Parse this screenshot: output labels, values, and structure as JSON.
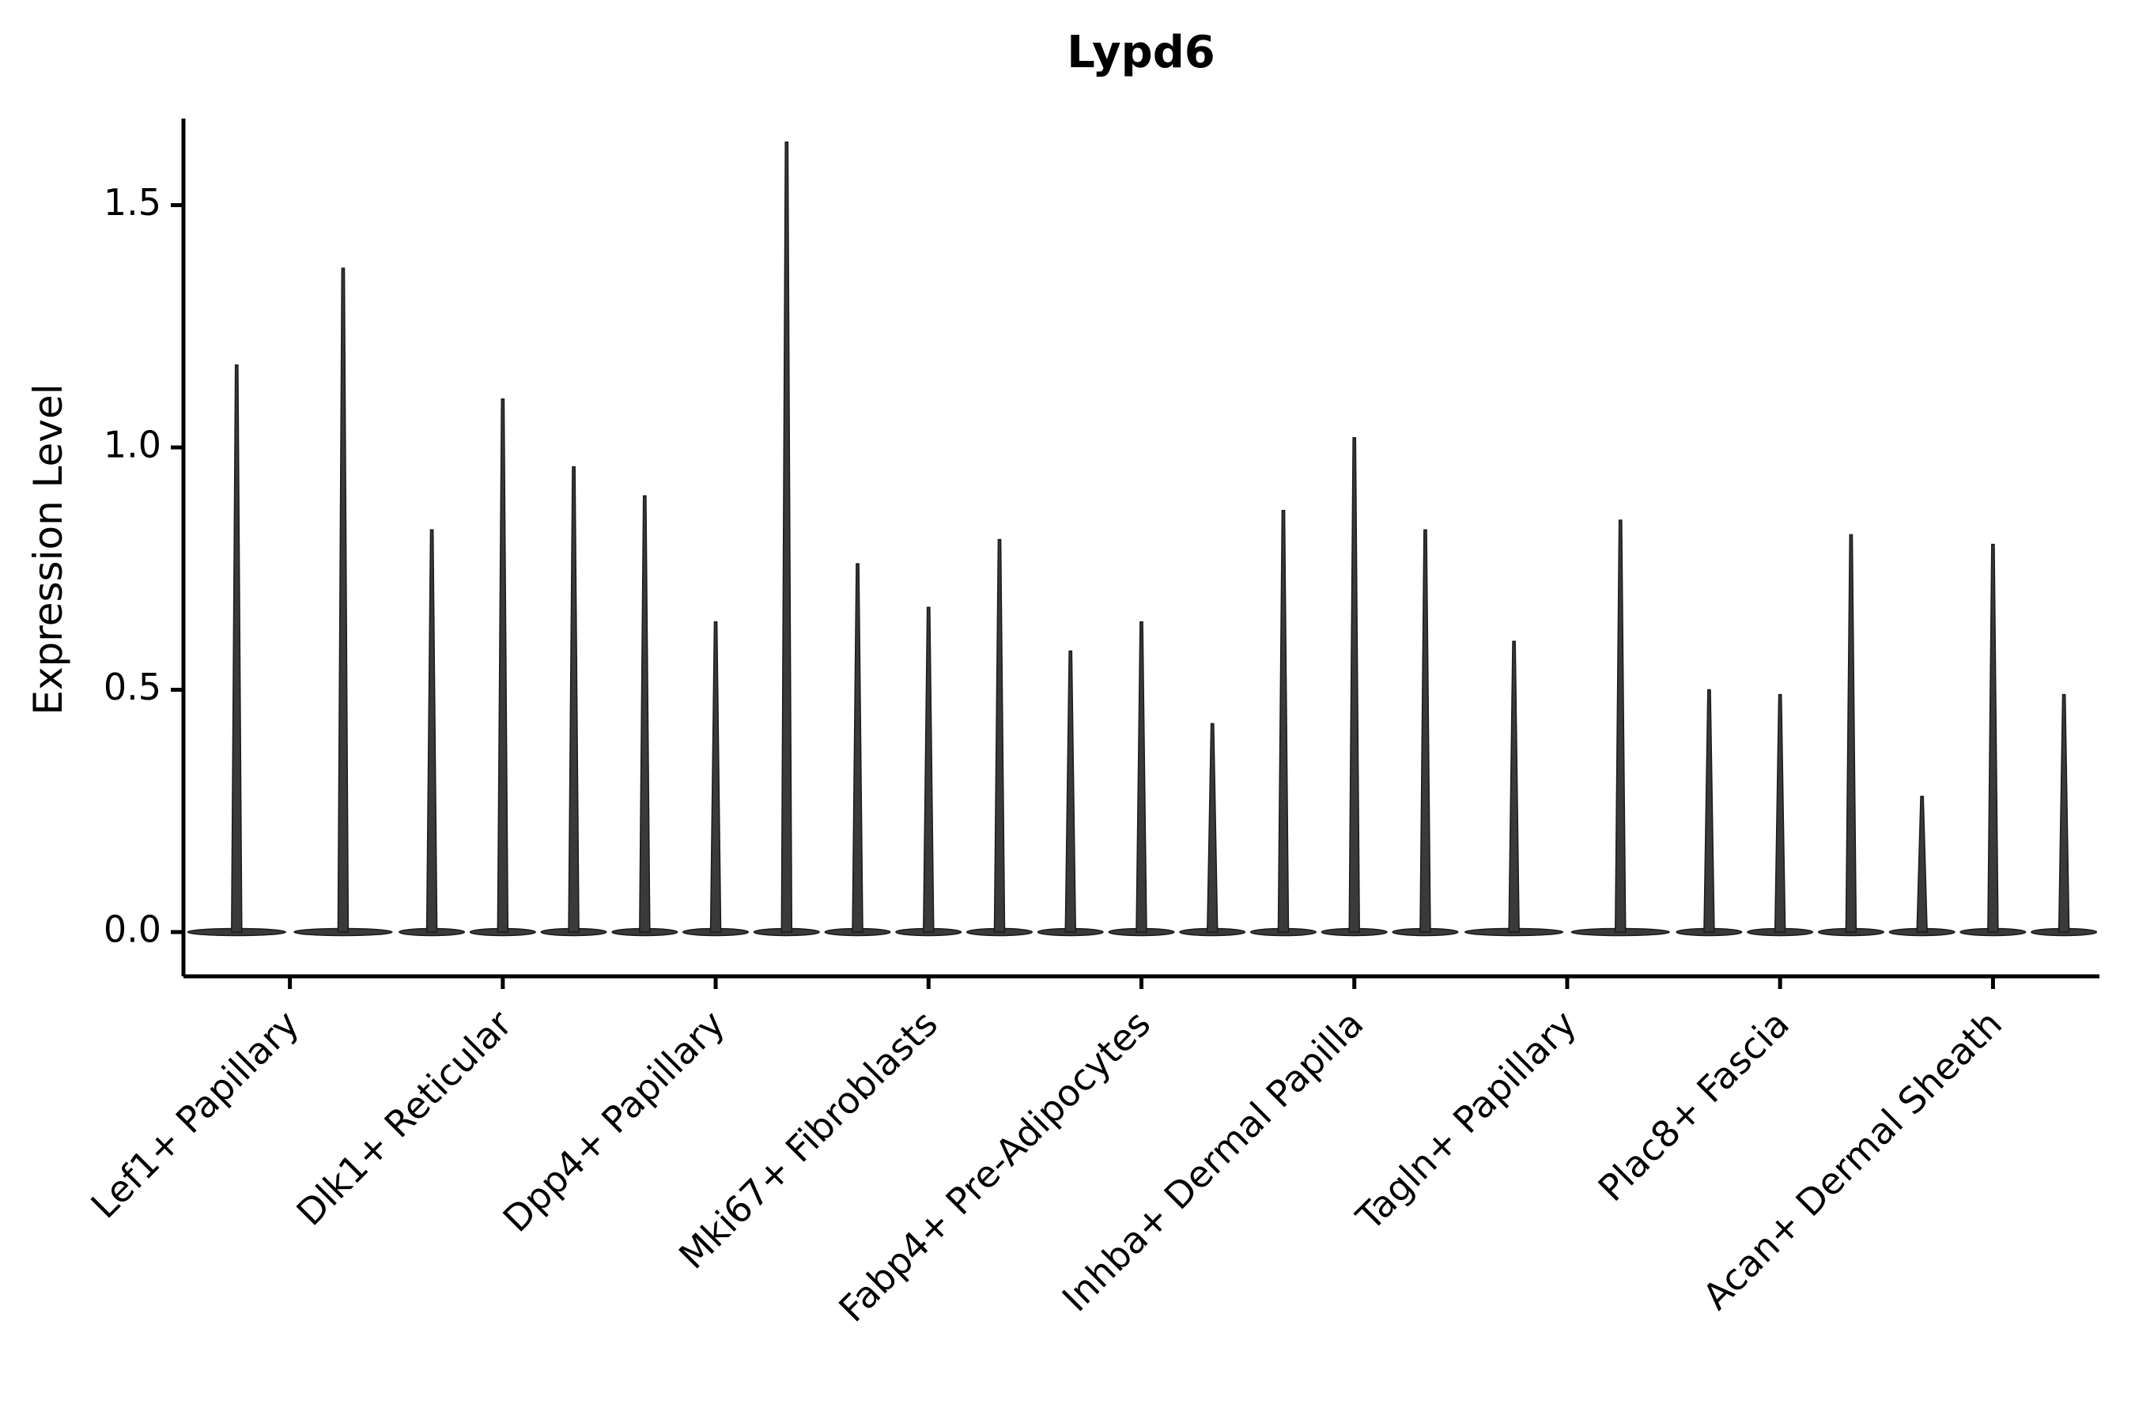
{
  "figure": {
    "title": "Lypd6",
    "ylabel": "Expression Level"
  },
  "chart_data": {
    "type": "violin",
    "title": "Lypd6",
    "xlabel": "",
    "ylabel": "Expression Level",
    "ylim": [
      -0.09,
      1.72
    ],
    "yticks": [
      "0.0",
      "0.5",
      "1.0",
      "1.5"
    ],
    "grid": false,
    "legend": "none",
    "categories": [
      "Lef1+ Papillary",
      "Dlk1+ Reticular",
      "Dpp4+ Papillary",
      "Mki67+ Fibroblasts",
      "Fabp4+ Pre-Adipocytes",
      "Inhba+ Dermal Papilla",
      "Tagln+ Papillary",
      "Plac8+ Fascia",
      "Acan+ Dermal Sheath"
    ],
    "groups": [
      {
        "category": "Lef1+ Papillary",
        "violin_peaks": [
          1.17,
          1.37
        ]
      },
      {
        "category": "Dlk1+ Reticular",
        "violin_peaks": [
          0.83,
          1.1,
          0.96
        ]
      },
      {
        "category": "Dpp4+ Papillary",
        "violin_peaks": [
          0.9,
          0.64,
          1.63
        ]
      },
      {
        "category": "Mki67+ Fibroblasts",
        "violin_peaks": [
          0.76,
          0.67,
          0.81
        ]
      },
      {
        "category": "Fabp4+ Pre-Adipocytes",
        "violin_peaks": [
          0.58,
          0.64,
          0.43
        ]
      },
      {
        "category": "Inhba+ Dermal Papilla",
        "violin_peaks": [
          0.87,
          1.02,
          0.83
        ]
      },
      {
        "category": "Tagln+ Papillary",
        "violin_peaks": [
          0.6,
          0.85
        ]
      },
      {
        "category": "Plac8+ Fascia",
        "violin_peaks": [
          0.5,
          0.49,
          0.82
        ]
      },
      {
        "category": "Acan+ Dermal Sheath",
        "violin_peaks": [
          0.28,
          0.8,
          0.49
        ]
      }
    ],
    "colors": {
      "violin_fill": "#3a3a3a",
      "violin_stroke": "#1a1a1a",
      "axis": "#000000",
      "background": "#ffffff"
    },
    "notes": "Each category shows very narrow violins: a flat mass at 0 expression with a thin spike rising to the listed peak expression level."
  }
}
